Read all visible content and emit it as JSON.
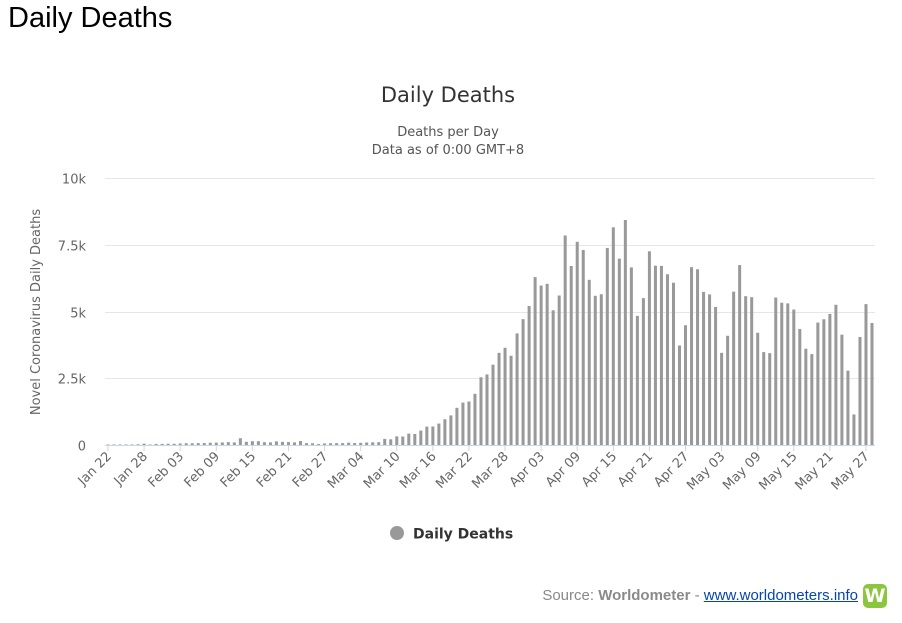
{
  "page": {
    "heading": "Daily Deaths"
  },
  "chart_data": {
    "type": "bar",
    "title": "Daily Deaths",
    "subtitle_lines": [
      "Deaths per Day",
      "Data as of 0:00 GMT+8"
    ],
    "xlabel": "",
    "ylabel": "Novel Coronavirus Daily Deaths",
    "ylim": [
      0,
      10000
    ],
    "yticks": [
      0,
      2500,
      5000,
      7500,
      10000
    ],
    "ytick_labels": [
      "0",
      "2.5k",
      "5k",
      "7.5k",
      "10k"
    ],
    "xtick_labels": [
      "Jan 22",
      "Jan 28",
      "Feb 03",
      "Feb 09",
      "Feb 15",
      "Feb 21",
      "Feb 27",
      "Mar 04",
      "Mar 10",
      "Mar 16",
      "Mar 22",
      "Mar 28",
      "Apr 03",
      "Apr 09",
      "Apr 15",
      "Apr 21",
      "Apr 27",
      "May 03",
      "May 09",
      "May 15",
      "May 21",
      "May 27"
    ],
    "grid": true,
    "legend_position": "bottom-center",
    "series": [
      {
        "name": "Daily Deaths",
        "color": "#999999",
        "categories": [
          "Jan 22",
          "Jan 23",
          "Jan 24",
          "Jan 25",
          "Jan 26",
          "Jan 27",
          "Jan 28",
          "Jan 29",
          "Jan 30",
          "Jan 31",
          "Feb 01",
          "Feb 02",
          "Feb 03",
          "Feb 04",
          "Feb 05",
          "Feb 06",
          "Feb 07",
          "Feb 08",
          "Feb 09",
          "Feb 10",
          "Feb 11",
          "Feb 12",
          "Feb 13",
          "Feb 14",
          "Feb 15",
          "Feb 16",
          "Feb 17",
          "Feb 18",
          "Feb 19",
          "Feb 20",
          "Feb 21",
          "Feb 22",
          "Feb 23",
          "Feb 24",
          "Feb 25",
          "Feb 26",
          "Feb 27",
          "Feb 28",
          "Feb 29",
          "Mar 01",
          "Mar 02",
          "Mar 03",
          "Mar 04",
          "Mar 05",
          "Mar 06",
          "Mar 07",
          "Mar 08",
          "Mar 09",
          "Mar 10",
          "Mar 11",
          "Mar 12",
          "Mar 13",
          "Mar 14",
          "Mar 15",
          "Mar 16",
          "Mar 17",
          "Mar 18",
          "Mar 19",
          "Mar 20",
          "Mar 21",
          "Mar 22",
          "Mar 23",
          "Mar 24",
          "Mar 25",
          "Mar 26",
          "Mar 27",
          "Mar 28",
          "Mar 29",
          "Mar 30",
          "Mar 31",
          "Apr 01",
          "Apr 02",
          "Apr 03",
          "Apr 04",
          "Apr 05",
          "Apr 06",
          "Apr 07",
          "Apr 08",
          "Apr 09",
          "Apr 10",
          "Apr 11",
          "Apr 12",
          "Apr 13",
          "Apr 14",
          "Apr 15",
          "Apr 16",
          "Apr 17",
          "Apr 18",
          "Apr 19",
          "Apr 20",
          "Apr 21",
          "Apr 22",
          "Apr 23",
          "Apr 24",
          "Apr 25",
          "Apr 26",
          "Apr 27",
          "Apr 28",
          "Apr 29",
          "Apr 30",
          "May 01",
          "May 02",
          "May 03",
          "May 04",
          "May 05",
          "May 06",
          "May 07",
          "May 08",
          "May 09",
          "May 10",
          "May 11",
          "May 12",
          "May 13",
          "May 14",
          "May 15",
          "May 16",
          "May 17",
          "May 18",
          "May 19",
          "May 20",
          "May 21",
          "May 22",
          "May 23",
          "May 24",
          "May 25",
          "May 26",
          "May 27",
          "May 28"
        ],
        "values": [
          17,
          1,
          8,
          16,
          14,
          26,
          49,
          2,
          38,
          42,
          46,
          45,
          57,
          65,
          66,
          72,
          73,
          86,
          89,
          97,
          108,
          97,
          254,
          121,
          143,
          142,
          105,
          98,
          136,
          118,
          109,
          98,
          150,
          71,
          64,
          37,
          58,
          67,
          72,
          70,
          86,
          72,
          80,
          94,
          100,
          107,
          229,
          213,
          323,
          318,
          427,
          413,
          541,
          690,
          694,
          803,
          965,
          1109,
          1393,
          1589,
          1629,
          1917,
          2536,
          2644,
          3008,
          3451,
          3640,
          3343,
          4180,
          4713,
          5205,
          6287,
          5971,
          6037,
          5045,
          5600,
          7847,
          6703,
          7610,
          7306,
          6186,
          5588,
          5646,
          7381,
          8153,
          6980,
          8427,
          6651,
          4836,
          5501,
          7254,
          6716,
          6709,
          6395,
          6078,
          3728,
          4485,
          6661,
          6582,
          5735,
          5640,
          5171,
          3451,
          4091,
          5744,
          6740,
          5574,
          5536,
          4204,
          3480,
          3440,
          5524,
          5329,
          5304,
          5073,
          4346,
          3606,
          3405,
          4586,
          4710,
          4910,
          5252,
          4133,
          2785,
          1144,
          4047,
          5276,
          4570
        ]
      }
    ]
  },
  "footer": {
    "source_prefix": "Source: ",
    "source_name": "Worldometer",
    "separator": " - ",
    "source_link": "www.worldometers.info",
    "logo_letter": "W"
  }
}
